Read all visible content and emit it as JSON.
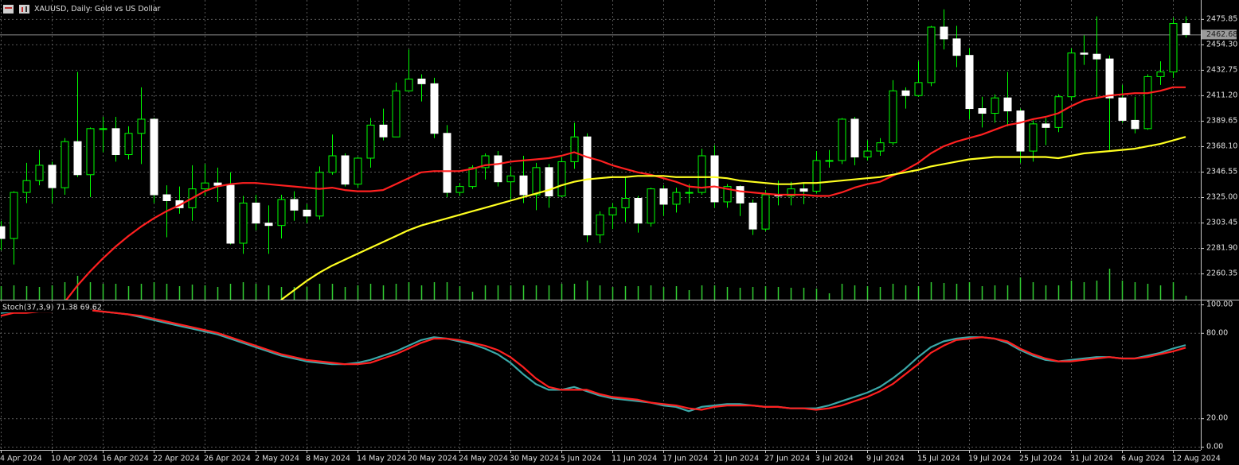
{
  "chart_data": [
    {
      "type": "candlestick",
      "title": "XAUUSD, Daily:  Gold vs US Dollar",
      "categories": [
        "4 Apr 2024",
        null,
        null,
        null,
        "10 Apr 2024",
        null,
        null,
        null,
        "16 Apr 2024",
        null,
        null,
        null,
        "22 Apr 2024",
        null,
        null,
        null,
        "26 Apr 2024",
        null,
        null,
        null,
        "2 May 2024",
        null,
        null,
        null,
        "8 May 2024",
        null,
        null,
        null,
        "14 May 2024",
        null,
        null,
        null,
        "20 May 2024",
        null,
        null,
        null,
        "24 May 2024",
        null,
        null,
        null,
        "30 May 2024",
        null,
        null,
        null,
        "5 Jun 2024",
        null,
        null,
        null,
        "11 Jun 2024",
        null,
        null,
        null,
        "17 Jun 2024",
        null,
        null,
        null,
        "21 Jun 2024",
        null,
        null,
        null,
        "27 Jun 2024",
        null,
        null,
        null,
        "3 Jul 2024",
        null,
        null,
        null,
        "9 Jul 2024",
        null,
        null,
        null,
        "15 Jul 2024",
        null,
        null,
        null,
        "19 Jul 2024",
        null,
        null,
        null,
        "25 Jul 2024",
        null,
        null,
        null,
        "31 Jul 2024",
        null,
        null,
        null,
        "6 Aug 2024",
        null,
        null,
        null,
        "12 Aug 2024",
        null
      ],
      "ohlc": [
        [
          2300,
          2305,
          2280,
          2290
        ],
        [
          2290,
          2330,
          2268,
          2329
        ],
        [
          2329,
          2354,
          2320,
          2339
        ],
        [
          2339,
          2365,
          2335,
          2352
        ],
        [
          2352,
          2355,
          2320,
          2333
        ],
        [
          2333,
          2375,
          2327,
          2372
        ],
        [
          2372,
          2431,
          2342,
          2344
        ],
        [
          2344,
          2384,
          2325,
          2383
        ],
        [
          2383,
          2393,
          2363,
          2383
        ],
        [
          2383,
          2393,
          2355,
          2361
        ],
        [
          2361,
          2385,
          2357,
          2379
        ],
        [
          2379,
          2418,
          2353,
          2391
        ],
        [
          2391,
          2392,
          2320,
          2327
        ],
        [
          2327,
          2335,
          2291,
          2322
        ],
        [
          2322,
          2334,
          2311,
          2316
        ],
        [
          2316,
          2352,
          2305,
          2332
        ],
        [
          2332,
          2353,
          2326,
          2337
        ],
        [
          2337,
          2350,
          2321,
          2335
        ],
        [
          2335,
          2346,
          2285,
          2286
        ],
        [
          2286,
          2326,
          2277,
          2320
        ],
        [
          2320,
          2327,
          2297,
          2303
        ],
        [
          2303,
          2318,
          2277,
          2301
        ],
        [
          2301,
          2327,
          2290,
          2323
        ],
        [
          2323,
          2330,
          2305,
          2314
        ],
        [
          2314,
          2319,
          2303,
          2309
        ],
        [
          2309,
          2351,
          2306,
          2346
        ],
        [
          2346,
          2378,
          2344,
          2360
        ],
        [
          2360,
          2362,
          2334,
          2336
        ],
        [
          2336,
          2359,
          2333,
          2358
        ],
        [
          2358,
          2392,
          2350,
          2386
        ],
        [
          2386,
          2400,
          2373,
          2376
        ],
        [
          2376,
          2422,
          2376,
          2415
        ],
        [
          2415,
          2450,
          2415,
          2425
        ],
        [
          2425,
          2429,
          2406,
          2421
        ],
        [
          2421,
          2426,
          2375,
          2379
        ],
        [
          2379,
          2386,
          2325,
          2329
        ],
        [
          2329,
          2337,
          2326,
          2334
        ],
        [
          2334,
          2352,
          2332,
          2350
        ],
        [
          2350,
          2362,
          2340,
          2360
        ],
        [
          2360,
          2364,
          2334,
          2338
        ],
        [
          2338,
          2351,
          2323,
          2343
        ],
        [
          2343,
          2360,
          2320,
          2327
        ],
        [
          2327,
          2354,
          2314,
          2350
        ],
        [
          2350,
          2353,
          2316,
          2326
        ],
        [
          2326,
          2359,
          2325,
          2355
        ],
        [
          2355,
          2388,
          2349,
          2376
        ],
        [
          2376,
          2379,
          2287,
          2293
        ],
        [
          2293,
          2313,
          2286,
          2310
        ],
        [
          2310,
          2320,
          2298,
          2316
        ],
        [
          2316,
          2342,
          2304,
          2324
        ],
        [
          2324,
          2326,
          2295,
          2303
        ],
        [
          2303,
          2333,
          2300,
          2332
        ],
        [
          2332,
          2335,
          2309,
          2319
        ],
        [
          2319,
          2333,
          2312,
          2329
        ],
        [
          2329,
          2336,
          2320,
          2329
        ],
        [
          2329,
          2366,
          2327,
          2360
        ],
        [
          2360,
          2369,
          2316,
          2321
        ],
        [
          2321,
          2336,
          2316,
          2334
        ],
        [
          2334,
          2335,
          2309,
          2320
        ],
        [
          2320,
          2323,
          2293,
          2298
        ],
        [
          2298,
          2331,
          2296,
          2327
        ],
        [
          2327,
          2339,
          2318,
          2326
        ],
        [
          2326,
          2338,
          2318,
          2332
        ],
        [
          2332,
          2337,
          2319,
          2330
        ],
        [
          2330,
          2364,
          2328,
          2356
        ],
        [
          2356,
          2365,
          2350,
          2356
        ],
        [
          2356,
          2392,
          2353,
          2391
        ],
        [
          2391,
          2393,
          2352,
          2359
        ],
        [
          2359,
          2373,
          2356,
          2364
        ],
        [
          2364,
          2375,
          2360,
          2371
        ],
        [
          2371,
          2424,
          2369,
          2415
        ],
        [
          2415,
          2418,
          2400,
          2411
        ],
        [
          2411,
          2440,
          2410,
          2422
        ],
        [
          2422,
          2470,
          2419,
          2469
        ],
        [
          2469,
          2484,
          2450,
          2459
        ],
        [
          2459,
          2470,
          2435,
          2445
        ],
        [
          2445,
          2451,
          2391,
          2400
        ],
        [
          2400,
          2410,
          2384,
          2396
        ],
        [
          2396,
          2412,
          2388,
          2409
        ],
        [
          2409,
          2431,
          2385,
          2398
        ],
        [
          2398,
          2400,
          2354,
          2364
        ],
        [
          2364,
          2390,
          2355,
          2387
        ],
        [
          2387,
          2392,
          2369,
          2384
        ],
        [
          2384,
          2412,
          2380,
          2410
        ],
        [
          2410,
          2451,
          2407,
          2447
        ],
        [
          2447,
          2462,
          2437,
          2446
        ],
        [
          2446,
          2478,
          2410,
          2442
        ],
        [
          2442,
          2445,
          2365,
          2409
        ],
        [
          2409,
          2420,
          2388,
          2390
        ],
        [
          2390,
          2410,
          2379,
          2383
        ],
        [
          2383,
          2429,
          2382,
          2427
        ],
        [
          2427,
          2440,
          2420,
          2431
        ],
        [
          2431,
          2477,
          2426,
          2472
        ],
        [
          2472,
          2478,
          2460,
          2462.68
        ]
      ],
      "up_color": "#000000",
      "down_color": "#ffffff",
      "wick_color": "#00ff00",
      "series": [
        {
          "color": "#ff2020",
          "values": [
            null,
            null,
            null,
            null,
            null,
            2236,
            2250,
            2262,
            2273,
            2283,
            2292,
            2300,
            2307,
            2313,
            2318,
            2324,
            2330,
            2334,
            2336,
            2337,
            2337,
            2336,
            2335,
            2334,
            2333,
            2332,
            2333,
            2331,
            2330,
            2330,
            2331,
            2336,
            2341,
            2346,
            2347,
            2347,
            2347,
            2349,
            2352,
            2353,
            2355,
            2356,
            2357,
            2358,
            2360,
            2363,
            2359,
            2356,
            2352,
            2349,
            2346,
            2344,
            2341,
            2338,
            2334,
            2333,
            2334,
            2332,
            2330,
            2329,
            2328,
            2327,
            2327,
            2327,
            2326,
            2326,
            2329,
            2333,
            2336,
            2338,
            2343,
            2348,
            2354,
            2362,
            2368,
            2372,
            2375,
            2378,
            2382,
            2386,
            2388,
            2391,
            2393,
            2396,
            2402,
            2407,
            2409,
            2411,
            2412,
            2413,
            2413,
            2415,
            2418,
            2418
          ]
        },
        {
          "color": "#ffff20",
          "values": [
            null,
            null,
            null,
            null,
            null,
            null,
            null,
            null,
            null,
            null,
            null,
            null,
            null,
            null,
            null,
            null,
            null,
            null,
            null,
            null,
            null,
            null,
            2238,
            2246,
            2254,
            2261,
            2267,
            2272,
            2277,
            2282,
            2287,
            2292,
            2297,
            2301,
            2304,
            2307,
            2310,
            2313,
            2316,
            2319,
            2322,
            2325,
            2328,
            2331,
            2335,
            2338,
            2340,
            2341,
            2342,
            2342,
            2343,
            2343,
            2343,
            2342,
            2342,
            2342,
            2342,
            2341,
            2339,
            2338,
            2337,
            2336,
            2336,
            2337,
            2337,
            2338,
            2339,
            2340,
            2341,
            2342,
            2344,
            2346,
            2348,
            2351,
            2353,
            2355,
            2357,
            2358,
            2359,
            2359,
            2359,
            2359,
            2359,
            2358,
            2360,
            2362,
            2363,
            2364,
            2365,
            2366,
            2368,
            2370,
            2373,
            2376
          ]
        }
      ],
      "volume": {
        "color": "#32cd32",
        "values": [
          17,
          18,
          17,
          16,
          18,
          22,
          30,
          22,
          20,
          20,
          17,
          20,
          22,
          20,
          17,
          19,
          18,
          16,
          20,
          22,
          20,
          18,
          16,
          16,
          16,
          20,
          20,
          16,
          18,
          20,
          18,
          20,
          22,
          18,
          22,
          22,
          17,
          10,
          18,
          18,
          18,
          18,
          18,
          18,
          20,
          20,
          24,
          18,
          16,
          17,
          17,
          18,
          16,
          17,
          12,
          18,
          18,
          16,
          15,
          16,
          17,
          16,
          15,
          15,
          14,
          8,
          20,
          18,
          17,
          16,
          20,
          18,
          17,
          22,
          21,
          20,
          22,
          17,
          18,
          18,
          28,
          22,
          18,
          18,
          24,
          22,
          24,
          39,
          24,
          22,
          20,
          18,
          22,
          5
        ]
      },
      "last_price": 2462.68,
      "ylim": [
        2238.2,
        2491.9
      ],
      "yticks": [
        2475.85,
        {
          "value": 2454.3,
          "label": "2454.30"
        },
        2432.75,
        {
          "value": 2411.2,
          "label": "2411.20"
        },
        2389.65,
        {
          "value": 2368.1,
          "label": "2368.10"
        },
        2346.55,
        {
          "value": 2325,
          "label": "2325.00"
        },
        2303.45,
        {
          "value": 2281.9,
          "label": "2281.90"
        },
        2260.35
      ],
      "grid": true
    },
    {
      "type": "line",
      "title": "Stoch(37,3,9) 71.38 69.62",
      "series": [
        {
          "color": "#3aa8a8",
          "values": [
            94,
            95,
            95,
            96,
            96,
            96,
            96,
            96,
            95,
            94,
            93,
            91,
            89,
            87,
            85,
            83,
            81,
            79,
            76,
            73,
            70,
            67,
            64,
            62,
            60,
            59,
            58,
            58,
            59,
            61,
            64,
            67,
            71,
            75,
            77,
            76,
            74,
            72,
            69,
            65,
            59,
            51,
            44,
            40,
            40,
            42,
            39,
            36,
            34,
            33,
            32,
            31,
            29,
            28,
            25,
            28,
            29,
            30,
            30,
            29,
            28,
            28,
            27,
            27,
            27,
            29,
            32,
            35,
            38,
            42,
            48,
            55,
            63,
            70,
            74,
            76,
            77,
            77,
            76,
            73,
            68,
            64,
            61,
            60,
            61,
            62,
            63,
            63,
            62,
            62,
            64,
            66,
            69,
            71.38
          ]
        },
        {
          "color": "#ff2020",
          "values": [
            92,
            94,
            94,
            95,
            95,
            96,
            96,
            96,
            95,
            94,
            93,
            92,
            90,
            88,
            86,
            84,
            82,
            80,
            77,
            74,
            71,
            68,
            65,
            63,
            61,
            60,
            59,
            58,
            58,
            59,
            62,
            65,
            69,
            73,
            76,
            76,
            75,
            73,
            71,
            68,
            63,
            56,
            48,
            42,
            40,
            40,
            40,
            37,
            35,
            34,
            33,
            31,
            30,
            29,
            27,
            26,
            28,
            29,
            29,
            29,
            28,
            28,
            27,
            27,
            26,
            27,
            29,
            32,
            35,
            39,
            44,
            51,
            58,
            66,
            71,
            75,
            76,
            77,
            76,
            74,
            69,
            65,
            62,
            60,
            60,
            61,
            62,
            63,
            62,
            62,
            63,
            65,
            67,
            69.62
          ]
        }
      ],
      "ylim": [
        0,
        100
      ],
      "yticks": [
        {
          "value": 100,
          "label": "100.00"
        },
        {
          "value": 80,
          "label": "80.00"
        },
        {
          "value": 20,
          "label": "20.00"
        },
        {
          "value": 0,
          "label": "0.00"
        }
      ],
      "grid": true
    }
  ]
}
